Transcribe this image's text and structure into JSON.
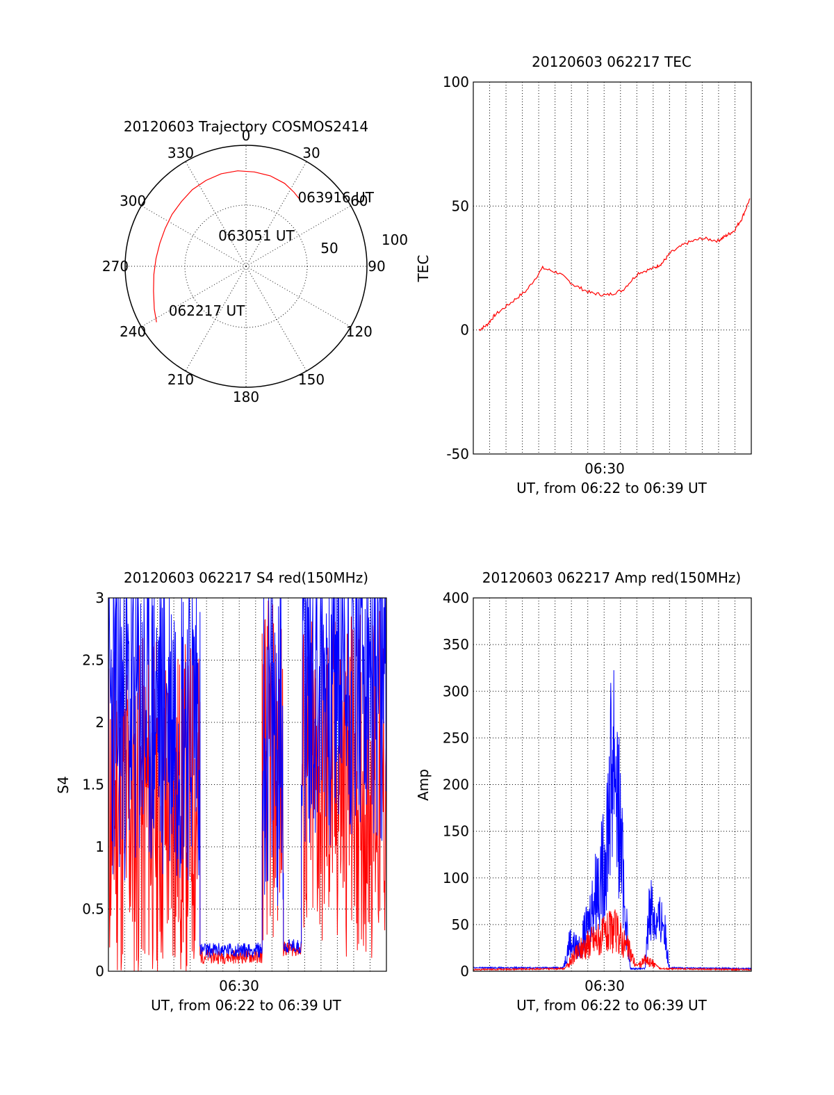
{
  "colors": {
    "red": "#ff0000",
    "blue": "#0000ff",
    "axis": "#000000"
  },
  "chart_data": [
    {
      "id": "polar",
      "type": "polar-trajectory",
      "title": "20120603 Trajectory COSMOS2414",
      "azimuth_labels": [
        "0",
        "30",
        "60",
        "90",
        "120",
        "150",
        "180",
        "210",
        "240",
        "270",
        "300",
        "330"
      ],
      "elevation_ring_labels": [
        "50",
        "100"
      ],
      "trajectory_azimuth_deg": [
        238,
        245,
        255,
        265,
        275,
        285,
        295,
        305,
        315,
        325,
        335,
        345,
        355,
        5,
        15,
        25,
        33,
        38
      ],
      "trajectory_zenith_dist": [
        97,
        93,
        88,
        85,
        83,
        82,
        82,
        83,
        84,
        86,
        87,
        88,
        88,
        87,
        86,
        84,
        81,
        79
      ],
      "annotations": [
        {
          "text": "062217 UT",
          "azimuth": 240,
          "r": 82
        },
        {
          "text": "063051 UT",
          "azimuth": 318,
          "r": 38
        },
        {
          "text": "063916 UT",
          "azimuth": 37,
          "r": 79
        }
      ]
    },
    {
      "id": "tec",
      "type": "line",
      "title": "20120603 062217 TEC",
      "ylabel": "TEC",
      "xlabel": "UT, from 06:22 to 06:39 UT",
      "x_tick_label": "06:30",
      "ylim": [
        -50,
        100
      ],
      "yticks": [
        "100",
        "50",
        "0",
        "-50"
      ],
      "x_minutes": [
        0,
        0.5,
        1,
        2,
        3,
        4,
        5,
        6,
        7,
        8,
        9,
        10,
        11,
        11.5,
        12,
        13,
        14,
        15,
        15.5,
        16,
        16.5,
        17
      ],
      "series": [
        {
          "color": "red",
          "values": [
            0,
            2,
            6,
            11,
            16,
            25,
            23,
            18,
            15,
            14,
            16,
            23,
            25,
            27,
            31,
            35,
            37,
            36,
            38,
            40,
            45,
            53
          ]
        }
      ]
    },
    {
      "id": "s4",
      "type": "line",
      "title": "20120603 062217 S4 red(150MHz)",
      "ylabel": "S4",
      "xlabel": "UT, from 06:22 to 06:39 UT",
      "x_tick_label": "06:30",
      "ylim": [
        0,
        3
      ],
      "yticks": [
        "3",
        "2.5",
        "2",
        "1.5",
        "1",
        "0.5",
        "0"
      ],
      "series": [
        {
          "color": "red",
          "segments_min": [
            [
              0,
              5.6,
              1.3
            ],
            [
              5.6,
              9.4,
              0.12
            ],
            [
              9.4,
              10.7,
              1.6
            ],
            [
              10.7,
              11.8,
              0.18
            ],
            [
              11.8,
              17,
              1.5
            ]
          ]
        },
        {
          "color": "blue",
          "segments_min": [
            [
              0,
              5.6,
              2.1
            ],
            [
              5.6,
              9.4,
              0.17
            ],
            [
              9.4,
              10.7,
              1.9
            ],
            [
              10.7,
              11.8,
              0.2
            ],
            [
              11.8,
              17,
              2.4
            ]
          ]
        }
      ]
    },
    {
      "id": "amp",
      "type": "line",
      "title": "20120603 062217 Amp red(150MHz)",
      "ylabel": "Amp",
      "xlabel": "UT, from 06:22 to 06:39 UT",
      "x_tick_label": "06:30",
      "ylim": [
        0,
        400
      ],
      "yticks": [
        "400",
        "350",
        "300",
        "250",
        "200",
        "150",
        "100",
        "50",
        "0"
      ],
      "series": [
        {
          "color": "red",
          "values_env": [
            [
              0,
              1
            ],
            [
              5.6,
              2
            ],
            [
              6.0,
              15
            ],
            [
              6.6,
              30
            ],
            [
              7.2,
              40
            ],
            [
              7.8,
              45
            ],
            [
              8.6,
              55
            ],
            [
              9.0,
              45
            ],
            [
              9.6,
              25
            ],
            [
              10.0,
              5
            ],
            [
              10.5,
              15
            ],
            [
              11.0,
              10
            ],
            [
              11.4,
              2
            ],
            [
              17,
              1
            ]
          ]
        },
        {
          "color": "blue",
          "values_env": [
            [
              0,
              3
            ],
            [
              5.5,
              3
            ],
            [
              5.9,
              40
            ],
            [
              6.4,
              30
            ],
            [
              7.0,
              60
            ],
            [
              7.6,
              120
            ],
            [
              8.0,
              140
            ],
            [
              8.6,
              310
            ],
            [
              9.0,
              180
            ],
            [
              9.3,
              80
            ],
            [
              9.6,
              2
            ],
            [
              10.5,
              2
            ],
            [
              10.8,
              95
            ],
            [
              11.2,
              60
            ],
            [
              11.6,
              70
            ],
            [
              12.0,
              3
            ],
            [
              17,
              2
            ]
          ]
        }
      ]
    }
  ]
}
